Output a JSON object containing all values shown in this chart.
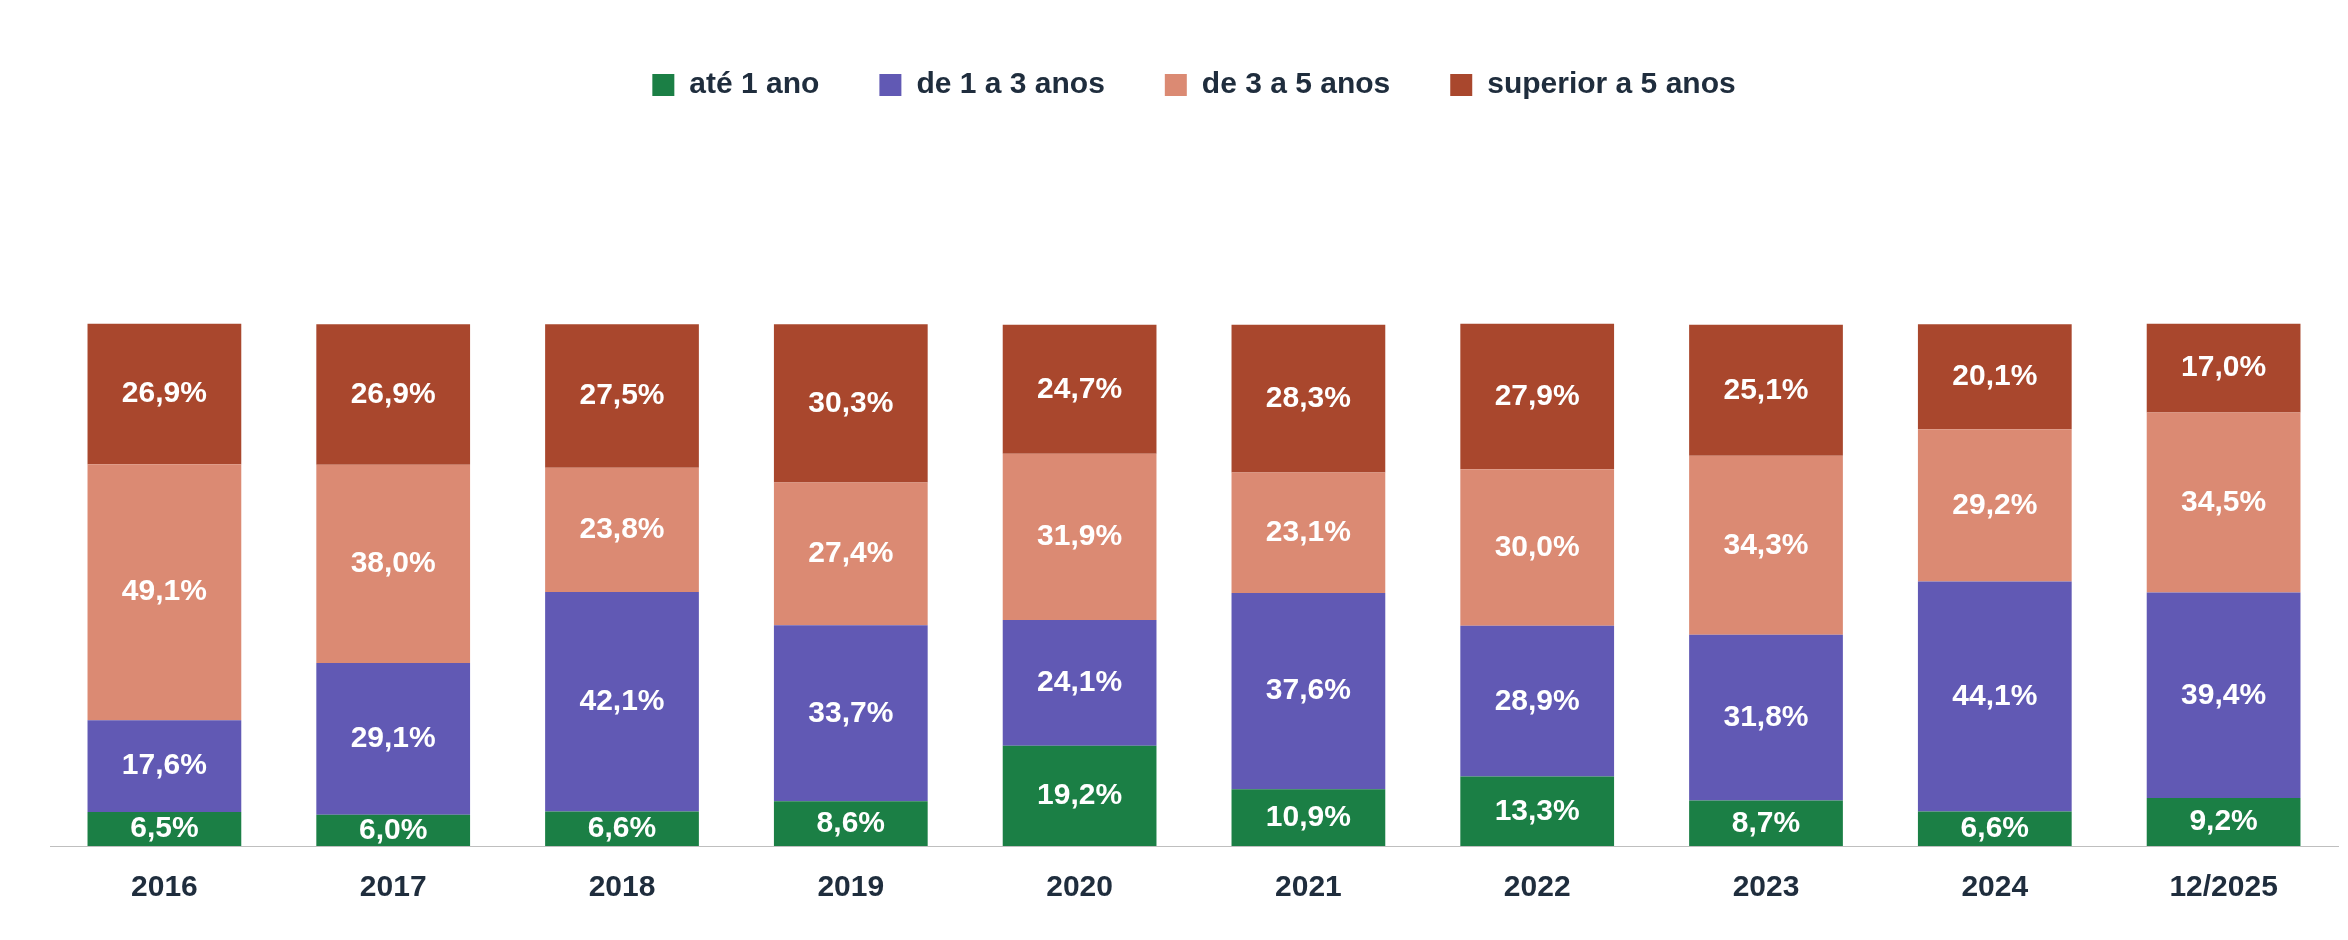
{
  "chart_data": {
    "type": "bar",
    "stacked": true,
    "legend": "top",
    "categories": [
      "2016",
      "2017",
      "2018",
      "2019",
      "2020",
      "2021",
      "2022",
      "2023",
      "2024",
      "12/2025"
    ],
    "series": [
      {
        "name": "até 1 ano",
        "color": "#1b7f45",
        "values": [
          6.5,
          6.0,
          6.6,
          8.6,
          19.2,
          10.9,
          13.3,
          8.7,
          6.6,
          9.2
        ],
        "value_labels": [
          "6,5%",
          "6,0%",
          "6,6%",
          "8,6%",
          "19,2%",
          "10,9%",
          "13,3%",
          "8,7%",
          "6,6%",
          "9,2%"
        ]
      },
      {
        "name": "de 1 a 3 anos",
        "color": "#6159b4",
        "values": [
          17.6,
          29.1,
          42.1,
          33.7,
          24.1,
          37.6,
          28.9,
          31.8,
          44.1,
          39.4
        ],
        "value_labels": [
          "17,6%",
          "29,1%",
          "42,1%",
          "33,7%",
          "24,1%",
          "37,6%",
          "28,9%",
          "31,8%",
          "44,1%",
          "39,4%"
        ]
      },
      {
        "name": "de 3 a 5 anos",
        "color": "#db8a73",
        "values": [
          49.1,
          38.0,
          23.8,
          27.4,
          31.9,
          23.1,
          30.0,
          34.3,
          29.2,
          34.5
        ],
        "value_labels": [
          "49,1%",
          "38,0%",
          "23,8%",
          "27,4%",
          "31,9%",
          "23,1%",
          "30,0%",
          "34,3%",
          "29,2%",
          "34,5%"
        ]
      },
      {
        "name": "superior a 5 anos",
        "color": "#a9472d",
        "values": [
          26.9,
          26.9,
          27.5,
          30.3,
          24.7,
          28.3,
          27.9,
          25.1,
          20.1,
          17.0
        ],
        "value_labels": [
          "26,9%",
          "26,9%",
          "27,5%",
          "30,3%",
          "24,7%",
          "28,3%",
          "27,9%",
          "25,1%",
          "20,1%",
          "17,0%"
        ]
      }
    ]
  }
}
